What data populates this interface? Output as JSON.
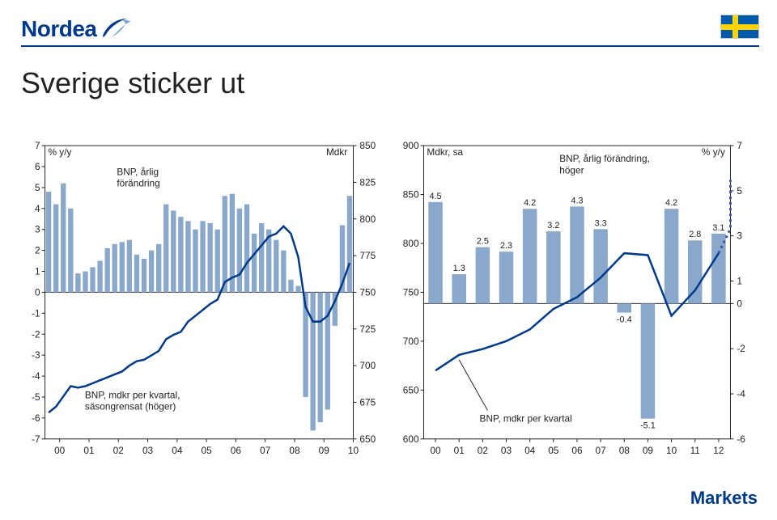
{
  "slide_title": "Sverige sticker ut",
  "brand": {
    "logo_text": "Nordea",
    "footer_text": "Markets"
  },
  "colors": {
    "brand_blue": "#003a8c",
    "bar_fill": "#8aa7cc",
    "line_stroke": "#003a8c",
    "zero_line": "#222222",
    "frame": "#222222",
    "dashed": "#3857a6",
    "bg": "#ffffff",
    "flag_blue": "#005bac",
    "flag_yellow": "#ffd400"
  },
  "chart_left": {
    "left_y": {
      "label": "% y/y",
      "min": -7,
      "max": 7,
      "step": 1
    },
    "right_y": {
      "label": "Mdkr",
      "min": 650,
      "max": 850,
      "step": 25
    },
    "x": {
      "ticks": [
        "00",
        "01",
        "02",
        "03",
        "04",
        "05",
        "06",
        "07",
        "08",
        "09",
        "10"
      ]
    },
    "bar_annot": "BNP, årlig\nförändring",
    "line_annot": "BNP, mdkr per kvartal,\nsäsongrensat (höger)",
    "bars": [
      4.8,
      4.2,
      5.2,
      4.0,
      0.9,
      1.0,
      1.2,
      1.5,
      2.1,
      2.3,
      2.4,
      2.5,
      1.8,
      1.6,
      2.0,
      2.3,
      4.2,
      3.9,
      3.6,
      3.4,
      3.0,
      3.4,
      3.3,
      3.0,
      4.6,
      4.7,
      4.0,
      4.2,
      2.8,
      3.3,
      3.0,
      2.5,
      2.0,
      0.6,
      0.3,
      -5.0,
      -6.6,
      -6.2,
      -5.6,
      -1.6,
      3.2,
      4.6
    ],
    "line": [
      668,
      672,
      679,
      686,
      685,
      686,
      688,
      690,
      692,
      694,
      696,
      700,
      703,
      704,
      707,
      710,
      718,
      721,
      723,
      730,
      734,
      738,
      742,
      745,
      757,
      760,
      762,
      770,
      776,
      782,
      788,
      790,
      795,
      790,
      774,
      740,
      730,
      730,
      734,
      744,
      756,
      770
    ]
  },
  "chart_right": {
    "left_y": {
      "label": "Mdkr, sa",
      "min": 600,
      "max": 900,
      "step": 50
    },
    "right_y": {
      "label": "% y/y",
      "min": -6,
      "max": 7,
      "ticks": [
        7,
        5,
        3,
        1,
        0,
        -2,
        -4,
        -6
      ]
    },
    "x": {
      "ticks": [
        "00",
        "01",
        "02",
        "03",
        "04",
        "05",
        "06",
        "07",
        "08",
        "09",
        "10",
        "11",
        "12"
      ]
    },
    "bar_annot": "BNP, årlig förändring,\nhöger",
    "line_annot": "BNP, mdkr per kvartal",
    "bars": [
      {
        "x": 0,
        "val": 4.5,
        "label": "4.5"
      },
      {
        "x": 1,
        "val": 1.3,
        "label": "1.3"
      },
      {
        "x": 2,
        "val": 2.5,
        "label": "2.5"
      },
      {
        "x": 3,
        "val": 2.3,
        "label": "2.3"
      },
      {
        "x": 4,
        "val": 4.2,
        "label": "4.2"
      },
      {
        "x": 5,
        "val": 3.2,
        "label": "3.2"
      },
      {
        "x": 6,
        "val": 4.3,
        "label": "4.3"
      },
      {
        "x": 7,
        "val": 3.3,
        "label": "3.3"
      },
      {
        "x": 8,
        "val": -0.4,
        "label": "-0.4"
      },
      {
        "x": 9,
        "val": -5.1,
        "label": "-5.1"
      },
      {
        "x": 10,
        "val": 4.2,
        "label": "4.2"
      },
      {
        "x": 11,
        "val": 2.8,
        "label": "2.8"
      },
      {
        "x": 12,
        "val": 3.1,
        "label": "3.1"
      }
    ],
    "line_solid": [
      670,
      686,
      692,
      700,
      712,
      733,
      745,
      765,
      790,
      788,
      726,
      752,
      790
    ],
    "line_dashed": [
      790,
      815,
      838,
      865
    ]
  }
}
